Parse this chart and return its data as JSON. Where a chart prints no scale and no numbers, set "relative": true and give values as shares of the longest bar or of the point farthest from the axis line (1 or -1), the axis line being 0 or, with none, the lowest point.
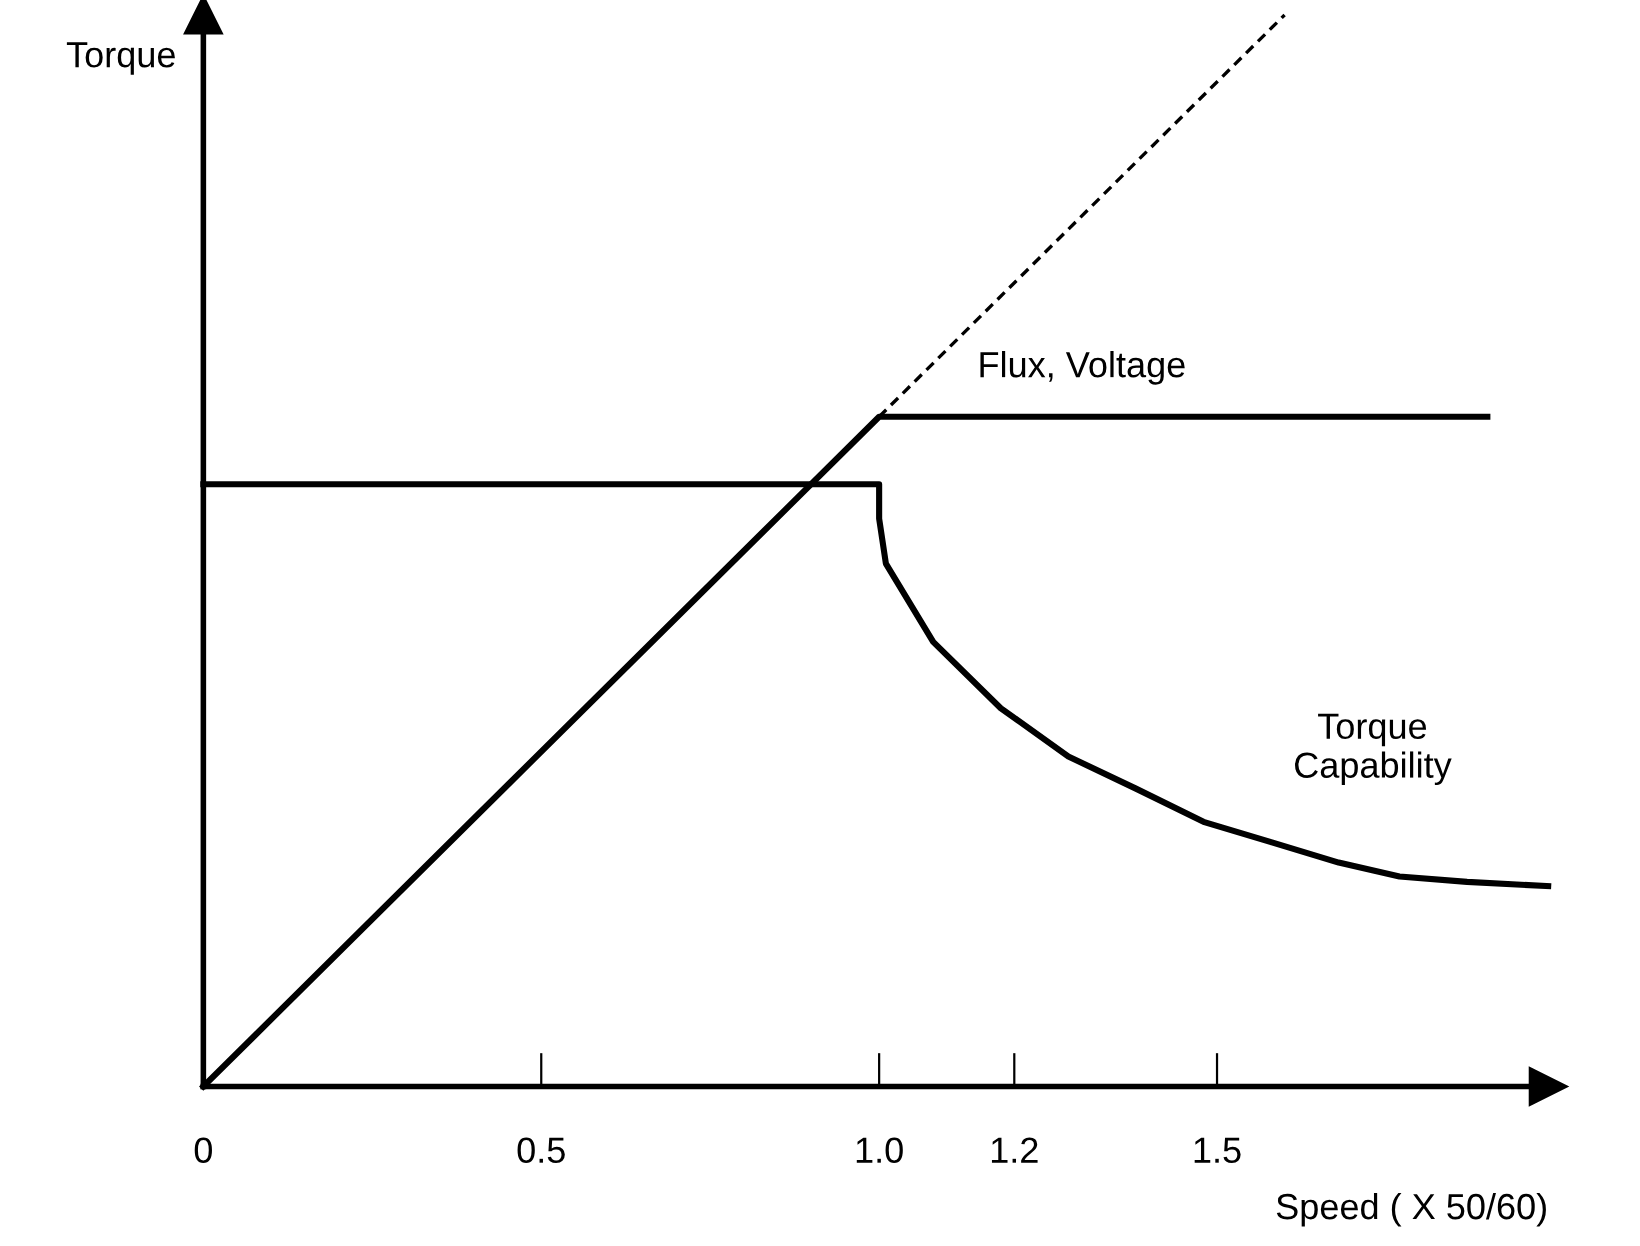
{
  "chart_data": {
    "type": "line",
    "relative": true,
    "xlabel": "Speed ( X 50/60)",
    "ylabel": "Torque",
    "xlim": [
      0,
      1.99
    ],
    "xticks": [
      0,
      0.5,
      {
        "value": 1,
        "label": "1.0"
      },
      1.2,
      1.5
    ],
    "grid": false,
    "marker": "none",
    "series": [
      {
        "name": "Flux, Voltage",
        "color": "#000000",
        "line_style": "solid",
        "x": [
          0,
          1.0,
          1.9
        ],
        "values": [
          0,
          0.625,
          0.625
        ]
      },
      {
        "color": "#000000",
        "line_style": "dashed",
        "x": [
          1.0,
          1.6
        ],
        "values": [
          0.625,
          1.0
        ]
      },
      {
        "name": "Torque Capability",
        "color": "#000000",
        "line_style": "solid",
        "x": [
          0,
          1.0,
          1.0,
          1.01,
          1.08,
          1.18,
          1.28,
          1.38,
          1.48,
          1.58,
          1.68,
          1.77,
          1.87,
          1.99
        ],
        "values": [
          0.562,
          0.562,
          0.53,
          0.488,
          0.415,
          0.353,
          0.308,
          0.278,
          0.247,
          0.228,
          0.209,
          0.196,
          0.191,
          0.187
        ]
      }
    ]
  }
}
